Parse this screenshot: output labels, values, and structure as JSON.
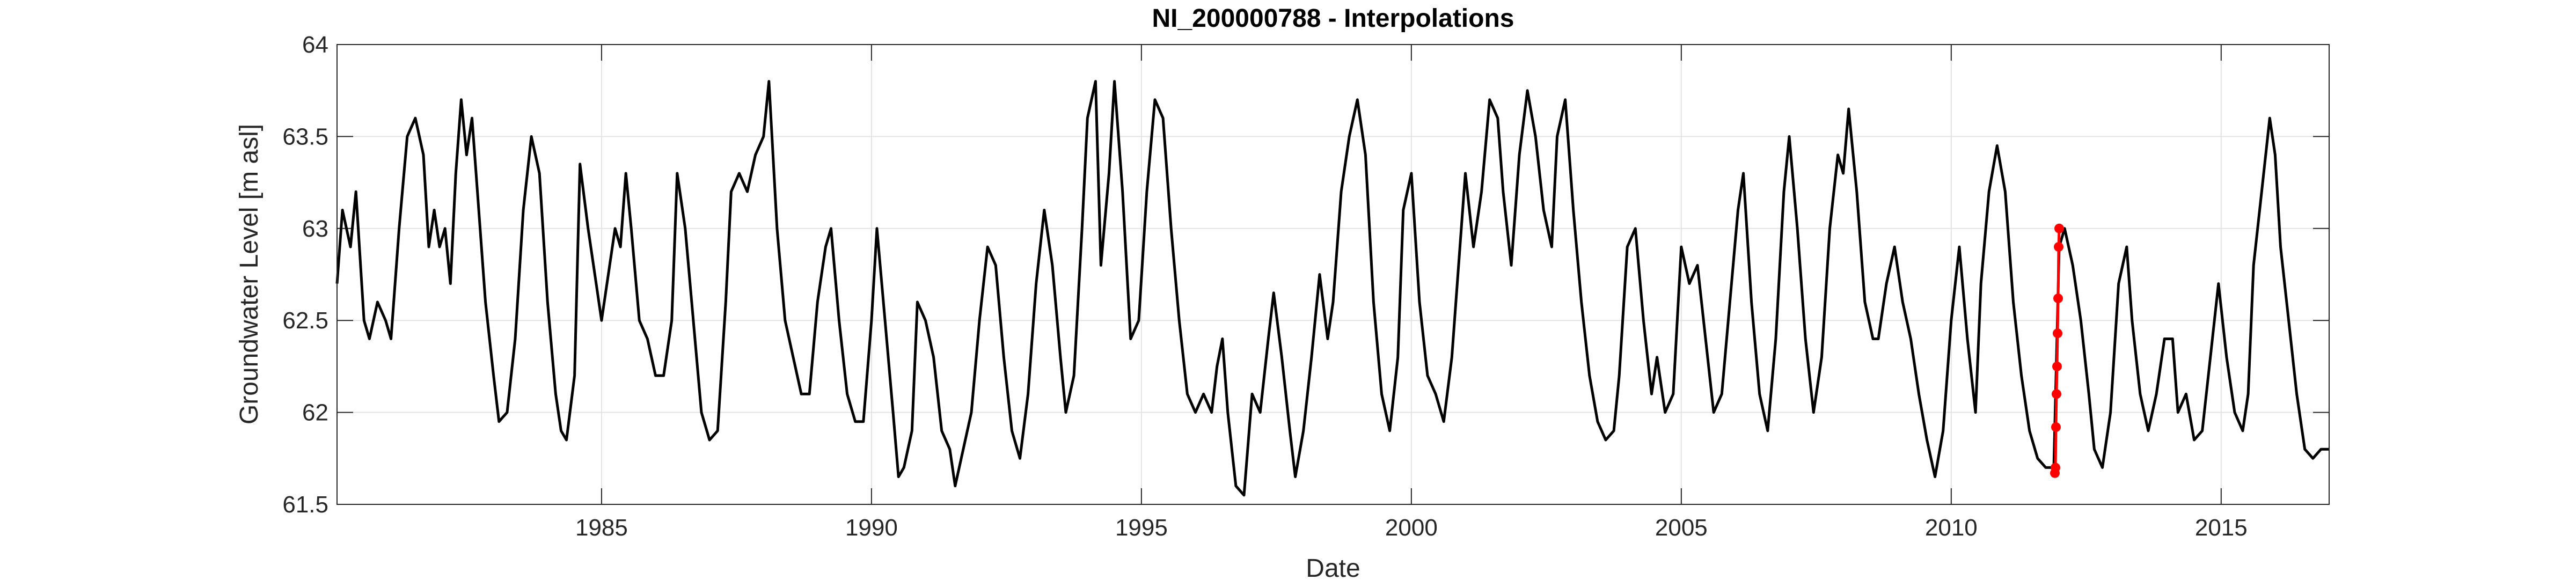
{
  "chart_data": {
    "type": "line",
    "title": "NI_200000788 - Interpolations",
    "xlabel": "Date",
    "ylabel": "Groundwater Level [m asl]",
    "xlim": [
      1980.1,
      2017.0
    ],
    "xticks": [
      1985,
      1990,
      1995,
      2000,
      2005,
      2010,
      2015
    ],
    "ylim": [
      61.5,
      64
    ],
    "yticks": [
      61.5,
      62,
      62.5,
      63,
      63.5,
      64
    ],
    "grid": true,
    "series": [
      {
        "color": "#000000",
        "marker": false,
        "x": [
          1980.1,
          1980.2,
          1980.35,
          1980.45,
          1980.6,
          1980.7,
          1980.85,
          1981.0,
          1981.1,
          1981.25,
          1981.4,
          1981.55,
          1981.7,
          1981.8,
          1981.9,
          1982.0,
          1982.1,
          1982.2,
          1982.3,
          1982.4,
          1982.5,
          1982.6,
          1982.7,
          1982.85,
          1983.0,
          1983.1,
          1983.25,
          1983.4,
          1983.55,
          1983.7,
          1983.85,
          1984.0,
          1984.15,
          1984.25,
          1984.35,
          1984.5,
          1984.6,
          1984.75,
          1984.9,
          1985.0,
          1985.1,
          1985.25,
          1985.35,
          1985.45,
          1985.55,
          1985.7,
          1985.85,
          1986.0,
          1986.15,
          1986.3,
          1986.4,
          1986.55,
          1986.7,
          1986.85,
          1987.0,
          1987.15,
          1987.3,
          1987.4,
          1987.55,
          1987.7,
          1987.85,
          1988.0,
          1988.1,
          1988.25,
          1988.4,
          1988.55,
          1988.7,
          1988.85,
          1989.0,
          1989.15,
          1989.25,
          1989.4,
          1989.55,
          1989.7,
          1989.85,
          1990.0,
          1990.1,
          1990.25,
          1990.4,
          1990.5,
          1990.6,
          1990.75,
          1990.85,
          1991.0,
          1991.15,
          1991.3,
          1991.45,
          1991.55,
          1991.7,
          1991.85,
          1992.0,
          1992.15,
          1992.3,
          1992.45,
          1992.6,
          1992.75,
          1992.9,
          1993.05,
          1993.2,
          1993.35,
          1993.5,
          1993.6,
          1993.75,
          1993.9,
          1994.0,
          1994.15,
          1994.25,
          1994.4,
          1994.5,
          1994.65,
          1994.8,
          1994.95,
          1995.1,
          1995.25,
          1995.4,
          1995.55,
          1995.7,
          1995.85,
          1996.0,
          1996.15,
          1996.3,
          1996.4,
          1996.5,
          1996.6,
          1996.75,
          1996.9,
          1997.05,
          1997.2,
          1997.35,
          1997.45,
          1997.6,
          1997.75,
          1997.85,
          1998.0,
          1998.15,
          1998.3,
          1998.45,
          1998.55,
          1998.7,
          1998.85,
          1999.0,
          1999.15,
          1999.3,
          1999.45,
          1999.6,
          1999.75,
          1999.85,
          2000.0,
          2000.15,
          2000.3,
          2000.45,
          2000.6,
          2000.75,
          2000.9,
          2001.0,
          2001.15,
          2001.3,
          2001.45,
          2001.6,
          2001.7,
          2001.85,
          2002.0,
          2002.15,
          2002.3,
          2002.45,
          2002.6,
          2002.7,
          2002.85,
          2003.0,
          2003.15,
          2003.3,
          2003.45,
          2003.6,
          2003.75,
          2003.85,
          2004.0,
          2004.15,
          2004.3,
          2004.45,
          2004.55,
          2004.7,
          2004.85,
          2005.0,
          2005.15,
          2005.3,
          2005.45,
          2005.6,
          2005.75,
          2005.9,
          2006.05,
          2006.15,
          2006.3,
          2006.45,
          2006.6,
          2006.75,
          2006.9,
          2007.0,
          2007.15,
          2007.3,
          2007.45,
          2007.6,
          2007.75,
          2007.9,
          2008.0,
          2008.1,
          2008.25,
          2008.4,
          2008.55,
          2008.65,
          2008.8,
          2008.95,
          2009.1,
          2009.25,
          2009.4,
          2009.55,
          2009.7,
          2009.85,
          2010.0,
          2010.15,
          2010.3,
          2010.45,
          2010.55,
          2010.7,
          2010.85,
          2011.0,
          2011.15,
          2011.3,
          2011.45,
          2011.6,
          2011.75,
          2011.9,
          2012.0,
          2012.1,
          2012.25,
          2012.4,
          2012.55,
          2012.65,
          2012.8,
          2012.95,
          2013.1,
          2013.25,
          2013.35,
          2013.5,
          2013.65,
          2013.8,
          2013.95,
          2014.1,
          2014.2,
          2014.35,
          2014.5,
          2014.65,
          2014.8,
          2014.95,
          2015.1,
          2015.25,
          2015.4,
          2015.5,
          2015.6,
          2015.75,
          2015.9,
          2016.0,
          2016.1,
          2016.25,
          2016.4,
          2016.55,
          2016.7,
          2016.85,
          2017.0
        ],
        "values": [
          62.7,
          63.1,
          62.9,
          63.2,
          62.5,
          62.4,
          62.6,
          62.5,
          62.4,
          63.0,
          63.5,
          63.6,
          63.4,
          62.9,
          63.1,
          62.9,
          63.0,
          62.7,
          63.3,
          63.7,
          63.4,
          63.6,
          63.2,
          62.6,
          62.2,
          61.95,
          62.0,
          62.4,
          63.1,
          63.5,
          63.3,
          62.6,
          62.1,
          61.9,
          61.85,
          62.2,
          63.35,
          63.0,
          62.7,
          62.5,
          62.7,
          63.0,
          62.9,
          63.3,
          63.0,
          62.5,
          62.4,
          62.2,
          62.2,
          62.5,
          63.3,
          63.0,
          62.5,
          62.0,
          61.85,
          61.9,
          62.6,
          63.2,
          63.3,
          63.2,
          63.4,
          63.5,
          63.8,
          63.0,
          62.5,
          62.3,
          62.1,
          62.1,
          62.6,
          62.9,
          63.0,
          62.5,
          62.1,
          61.95,
          61.95,
          62.5,
          63.0,
          62.5,
          62.0,
          61.65,
          61.7,
          61.9,
          62.6,
          62.5,
          62.3,
          61.9,
          61.8,
          61.6,
          61.8,
          62.0,
          62.5,
          62.9,
          62.8,
          62.3,
          61.9,
          61.75,
          62.1,
          62.7,
          63.1,
          62.8,
          62.3,
          62.0,
          62.2,
          63.0,
          63.6,
          63.8,
          62.8,
          63.3,
          63.8,
          63.2,
          62.4,
          62.5,
          63.2,
          63.7,
          63.6,
          63.0,
          62.5,
          62.1,
          62.0,
          62.1,
          62.0,
          62.25,
          62.4,
          62.0,
          61.6,
          61.55,
          62.1,
          62.0,
          62.4,
          62.65,
          62.3,
          61.9,
          61.65,
          61.9,
          62.3,
          62.75,
          62.4,
          62.6,
          63.2,
          63.5,
          63.7,
          63.4,
          62.6,
          62.1,
          61.9,
          62.3,
          63.1,
          63.3,
          62.6,
          62.2,
          62.1,
          61.95,
          62.3,
          62.9,
          63.3,
          62.9,
          63.2,
          63.7,
          63.6,
          63.2,
          62.8,
          63.4,
          63.75,
          63.5,
          63.1,
          62.9,
          63.5,
          63.7,
          63.1,
          62.6,
          62.2,
          61.95,
          61.85,
          61.9,
          62.2,
          62.9,
          63.0,
          62.5,
          62.1,
          62.3,
          62.0,
          62.1,
          62.9,
          62.7,
          62.8,
          62.4,
          62.0,
          62.1,
          62.6,
          63.1,
          63.3,
          62.6,
          62.1,
          61.9,
          62.4,
          63.2,
          63.5,
          63.0,
          62.4,
          62.0,
          62.3,
          63.0,
          63.4,
          63.3,
          63.65,
          63.2,
          62.6,
          62.4,
          62.4,
          62.7,
          62.9,
          62.6,
          62.4,
          62.1,
          61.85,
          61.65,
          61.9,
          62.5,
          62.9,
          62.4,
          62.0,
          62.7,
          63.2,
          63.45,
          63.2,
          62.6,
          62.2,
          61.9,
          61.75,
          61.7,
          61.7,
          62.9,
          63.0,
          62.8,
          62.5,
          62.1,
          61.8,
          61.7,
          62.0,
          62.7,
          62.9,
          62.5,
          62.1,
          61.9,
          62.1,
          62.4,
          62.4,
          62.0,
          62.1,
          61.85,
          61.9,
          62.3,
          62.7,
          62.3,
          62.0,
          61.9,
          62.1,
          62.8,
          63.2,
          63.6,
          63.4,
          62.9,
          62.5,
          62.1,
          61.8,
          61.75,
          61.8,
          61.8
        ]
      },
      {
        "color": "#ff0000",
        "marker": true,
        "x": [
          2011.92,
          2011.93,
          2011.94,
          2011.95,
          2011.96,
          2011.97,
          2011.98,
          2011.99,
          2012.0
        ],
        "values": [
          61.67,
          61.7,
          61.92,
          62.1,
          62.25,
          62.43,
          62.62,
          62.9,
          63.0
        ]
      }
    ]
  }
}
